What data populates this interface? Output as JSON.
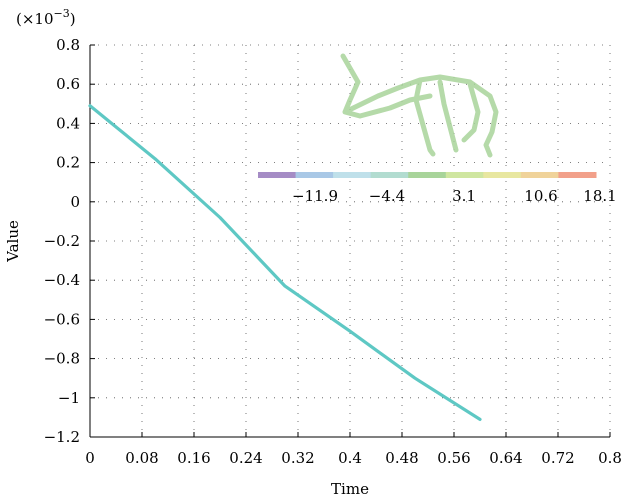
{
  "chart_data": {
    "type": "line",
    "title": "",
    "xlabel": "Time",
    "ylabel": "Value",
    "y_multiplier_label": "(×10",
    "y_multiplier_exponent": "−3",
    "y_multiplier_close": ")",
    "xlim": [
      0,
      0.8
    ],
    "ylim": [
      -1.2,
      0.8
    ],
    "x_ticks": [
      0,
      0.08,
      0.16,
      0.24,
      0.32,
      0.4,
      0.48,
      0.56,
      0.64,
      0.72,
      0.8
    ],
    "x_tick_labels": [
      "0",
      "0.08",
      "0.16",
      "0.24",
      "0.32",
      "0.4",
      "0.48",
      "0.56",
      "0.64",
      "0.72",
      "0.8"
    ],
    "y_ticks": [
      0.8,
      0.6,
      0.4,
      0.2,
      0,
      -0.2,
      -0.4,
      -0.6,
      -0.8,
      -1,
      -1.2
    ],
    "y_tick_labels": [
      "0.8",
      "0.6",
      "0.4",
      "0.2",
      "0",
      "−0.2",
      "−0.4",
      "−0.6",
      "−0.8",
      "−1",
      "−1.2"
    ],
    "grid": true,
    "series": [
      {
        "color": "#5ec8c4",
        "x": [
          0,
          0.1,
          0.2,
          0.3,
          0.4,
          0.5,
          0.6
        ],
        "y": [
          0.49,
          0.22,
          -0.08,
          -0.43,
          -0.66,
          -0.9,
          -1.11
        ]
      }
    ],
    "colorbar": {
      "tick_labels": [
        "−11.9",
        "−4.4",
        "3.1",
        "10.6",
        "18.1"
      ],
      "colors": [
        "#a58cc5",
        "#a9c8e6",
        "#bfe0ea",
        "#b2dcd0",
        "#a8d49a",
        "#cfe6a0",
        "#e8e7a0",
        "#f0d39a",
        "#f2a08a"
      ]
    },
    "inset_color": "#a8d49a"
  }
}
